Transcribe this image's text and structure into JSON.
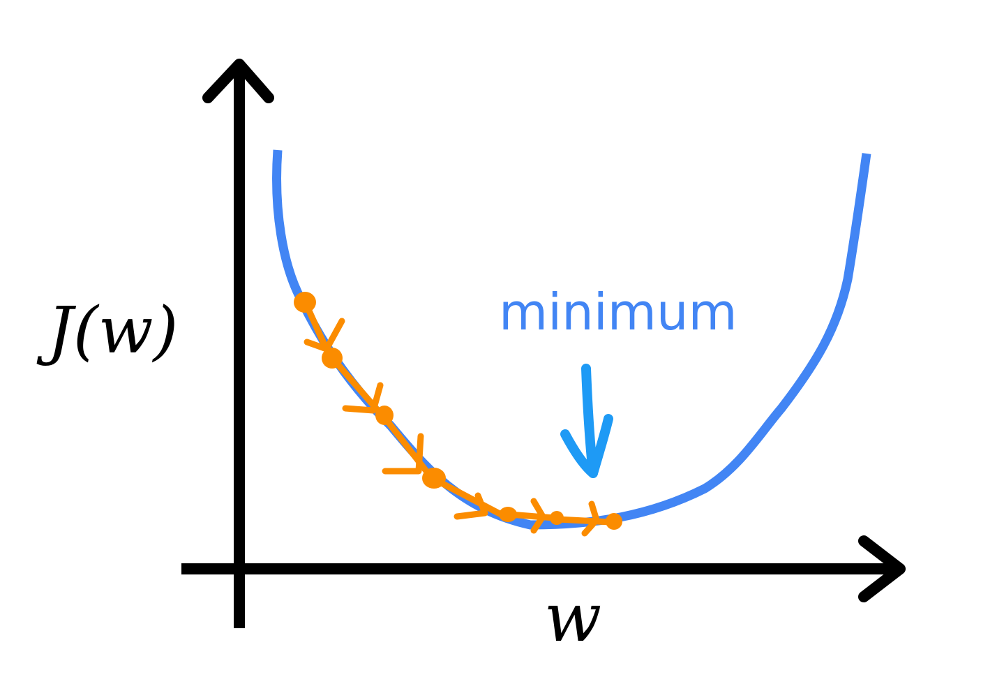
{
  "labels": {
    "y_axis": "J(w)",
    "x_axis": "w",
    "annotation": "minimum"
  }
}
